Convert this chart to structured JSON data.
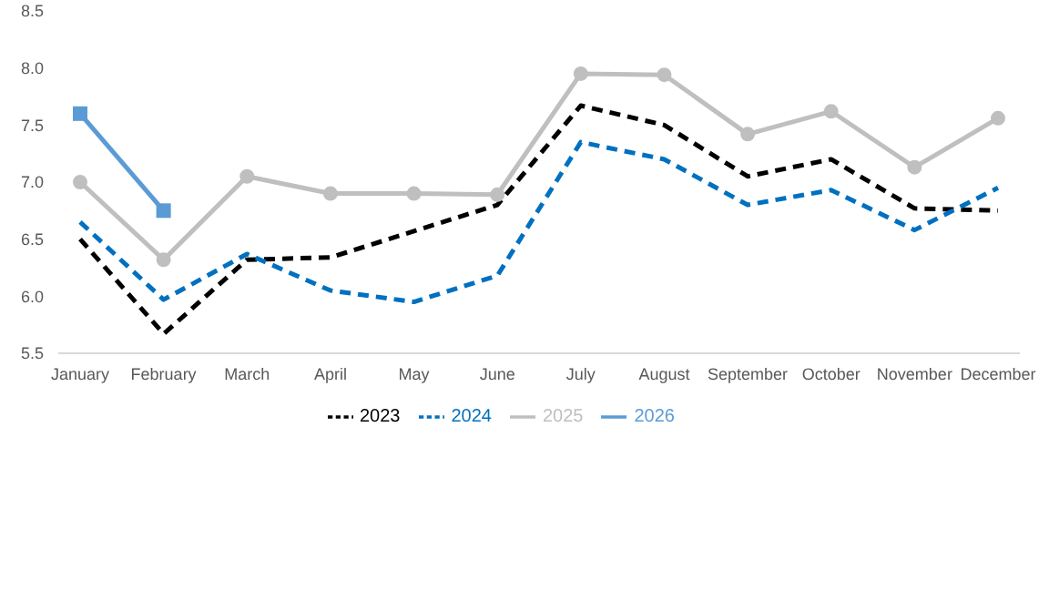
{
  "chart_data": {
    "type": "line",
    "categories": [
      "January",
      "February",
      "March",
      "April",
      "May",
      "June",
      "July",
      "August",
      "September",
      "October",
      "November",
      "December"
    ],
    "series": [
      {
        "name": "2023",
        "color": "#000000",
        "line_style": "dashed",
        "marker": "none",
        "values": [
          6.5,
          5.67,
          6.32,
          6.34,
          6.57,
          6.8,
          7.67,
          7.5,
          7.05,
          7.2,
          6.77,
          6.75
        ]
      },
      {
        "name": "2024",
        "color": "#0070c0",
        "line_style": "dashed",
        "marker": "none",
        "values": [
          6.65,
          5.97,
          6.37,
          6.05,
          5.95,
          6.18,
          7.35,
          7.2,
          6.8,
          6.93,
          6.58,
          6.95
        ]
      },
      {
        "name": "2025",
        "color": "#bfbfbf",
        "line_style": "solid",
        "marker": "circle",
        "values": [
          7.0,
          6.32,
          7.05,
          6.9,
          6.9,
          6.89,
          7.95,
          7.94,
          7.42,
          7.62,
          7.13,
          7.56
        ]
      },
      {
        "name": "2026",
        "color": "#5b9bd5",
        "line_style": "solid",
        "marker": "square",
        "values": [
          7.6,
          6.75,
          null,
          null,
          null,
          null,
          null,
          null,
          null,
          null,
          null,
          null
        ]
      }
    ],
    "ylim": [
      5.5,
      8.5
    ],
    "yticks": [
      {
        "value": 5.5,
        "label": "5.5"
      },
      {
        "value": 6,
        "label": "6.0"
      },
      {
        "value": 6.5,
        "label": "6.5"
      },
      {
        "value": 7,
        "label": "7.0"
      },
      {
        "value": 7.5,
        "label": "7.5"
      },
      {
        "value": 8,
        "label": "8.0"
      },
      {
        "value": 8.5,
        "label": "8.5"
      }
    ],
    "grid": false,
    "legend": "bottom"
  }
}
